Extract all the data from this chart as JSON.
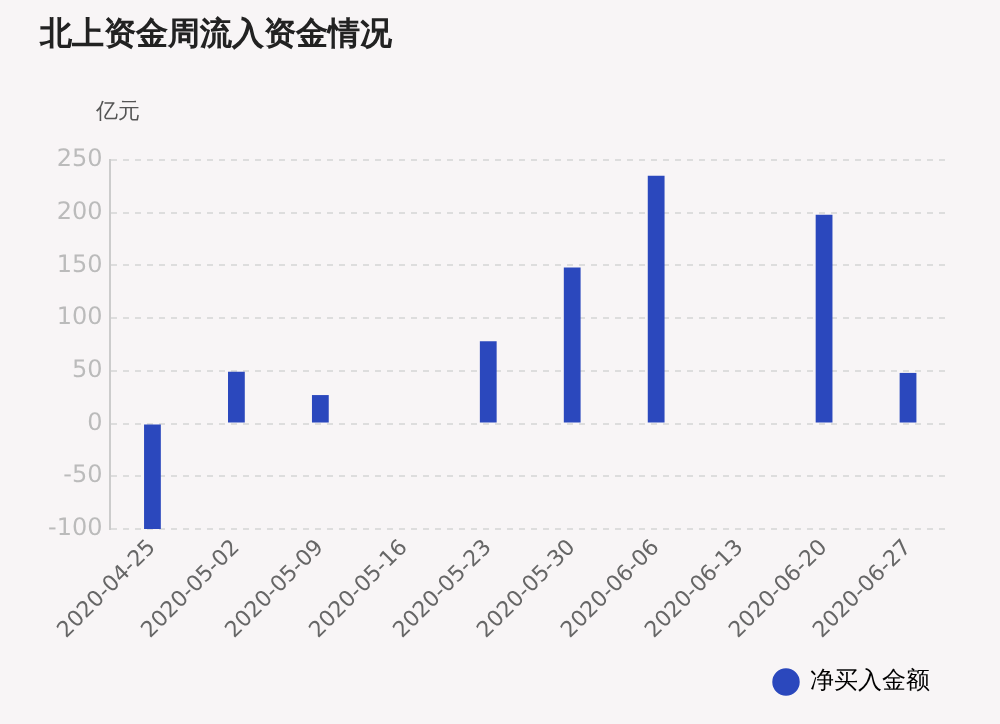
{
  "chart_data": {
    "type": "bar",
    "title": "北上资金周流入资金情况",
    "ylabel": "亿元",
    "categories": [
      "2020-04-25",
      "2020-05-02",
      "2020-05-09",
      "2020-05-16",
      "2020-05-23",
      "2020-05-30",
      "2020-06-06",
      "2020-06-13",
      "2020-06-20",
      "2020-06-27"
    ],
    "series": [
      {
        "name": "净买入金额",
        "color": "#2b48bd",
        "values": [
          -100,
          49,
          27,
          null,
          78,
          148,
          235,
          null,
          198,
          48
        ]
      }
    ],
    "ylim": [
      -100,
      250
    ],
    "yticks": [
      -100,
      -50,
      0,
      50,
      100,
      150,
      200,
      250
    ],
    "grid": "y",
    "legend": "bottom right"
  }
}
